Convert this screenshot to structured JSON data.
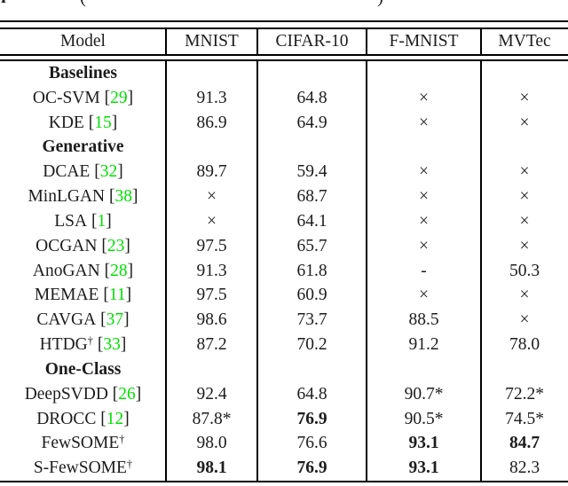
{
  "colors": {
    "citation_green": "#00e000",
    "text": "#1c1c1c",
    "rule": "#000000",
    "background": "#ffffff"
  },
  "top_fragment": {
    "left_glyph": "l",
    "open_paren": "(",
    "close_paren": ")"
  },
  "table": {
    "headers": [
      "Model",
      "MNIST",
      "CIFAR-10",
      "F-MNIST",
      "MVTec"
    ],
    "rows": [
      {
        "label": "Baselines"
      },
      {
        "name": "OC-SVM",
        "open": " [",
        "cite": "29",
        "close": "]",
        "values": [
          "91.3",
          "64.8",
          "×",
          "×"
        ]
      },
      {
        "name": "KDE",
        "open": " [",
        "cite": "15",
        "close": "]",
        "values": [
          "86.9",
          "64.9",
          "×",
          "×"
        ]
      },
      {
        "label": "Generative"
      },
      {
        "name": "DCAE",
        "open": " [",
        "cite": "32",
        "close": "]",
        "values": [
          "89.7",
          "59.4",
          "×",
          "×"
        ]
      },
      {
        "name": "MinLGAN",
        "open": " [",
        "cite": "38",
        "close": "]",
        "values": [
          "×",
          "68.7",
          "×",
          "×"
        ]
      },
      {
        "name": "LSA",
        "open": " [",
        "cite": "1",
        "close": "]",
        "values": [
          "×",
          "64.1",
          "×",
          "×"
        ]
      },
      {
        "name": "OCGAN",
        "open": " [",
        "cite": "23",
        "close": "]",
        "values": [
          "97.5",
          "65.7",
          "×",
          "×"
        ]
      },
      {
        "name": "AnoGAN",
        "open": " [",
        "cite": "28",
        "close": "]",
        "values": [
          "91.3",
          "61.8",
          "-",
          "50.3"
        ]
      },
      {
        "name": "MEMAE",
        "open": " [",
        "cite": "11",
        "close": "]",
        "values": [
          "97.5",
          "60.9",
          "×",
          "×"
        ]
      },
      {
        "name": "CAVGA",
        "open": " [",
        "cite": "37",
        "close": "]",
        "values": [
          "98.6",
          "73.7",
          "88.5",
          "×"
        ]
      },
      {
        "name": "HTDG",
        "dagger": "†",
        "open": " [",
        "cite": "33",
        "close": "]",
        "values": [
          "87.2",
          "70.2",
          "91.2",
          "78.0"
        ]
      },
      {
        "label": "One-Class"
      },
      {
        "name": "DeepSVDD",
        "open": " [",
        "cite": "26",
        "close": "]",
        "values": [
          "92.4",
          "64.8",
          "90.7*",
          "72.2*"
        ]
      },
      {
        "name": "DROCC",
        "open": " [",
        "cite": "12",
        "close": "]",
        "values": [
          "87.8*",
          "76.9",
          "90.5*",
          "74.5*"
        ]
      },
      {
        "name": "FewSOME",
        "dagger": "†",
        "values": [
          "98.0",
          "76.6",
          "93.1",
          "84.7"
        ]
      },
      {
        "name": "S-FewSOME",
        "dagger": "†",
        "values": [
          "98.1",
          "76.9",
          "93.1",
          "82.3"
        ]
      }
    ]
  }
}
